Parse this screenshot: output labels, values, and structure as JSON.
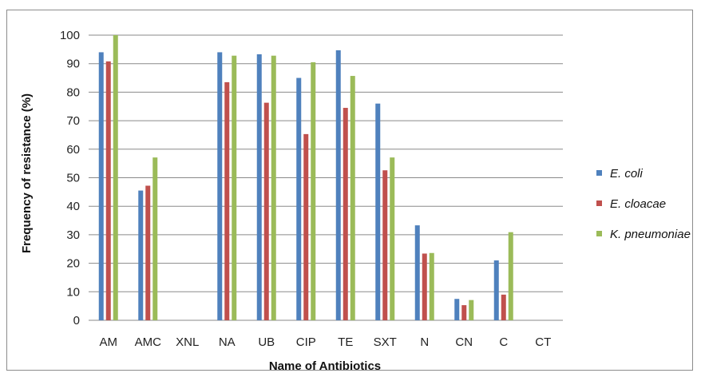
{
  "chart_data": {
    "type": "bar",
    "title": "",
    "xlabel": "Name of Antibiotics",
    "ylabel": "Frequency of resistance (%)",
    "ylim": [
      0,
      100
    ],
    "yticks": [
      0,
      10,
      20,
      30,
      40,
      50,
      60,
      70,
      80,
      90,
      100
    ],
    "grid": true,
    "legend_position": "right",
    "categories": [
      "AM",
      "AMC",
      "XNL",
      "NA",
      "UB",
      "CIP",
      "TE",
      "SXT",
      "N",
      "CN",
      "C",
      "CT"
    ],
    "series": [
      {
        "name": "E. coli",
        "color": "#4F81BD",
        "values": [
          94,
          45.5,
          0,
          94,
          93.3,
          85,
          94.7,
          76,
          33.3,
          7.5,
          21,
          0
        ]
      },
      {
        "name": "E. cloacae",
        "color": "#C0504D",
        "values": [
          90.8,
          47.2,
          0,
          83.5,
          76.3,
          65.3,
          74.5,
          52.6,
          23.4,
          5.3,
          9,
          0
        ]
      },
      {
        "name": "K. pneumoniae",
        "color": "#9BBB59",
        "values": [
          100,
          57.1,
          0,
          92.8,
          92.8,
          90.5,
          85.7,
          57.1,
          23.6,
          7.1,
          30.9,
          0
        ]
      }
    ]
  }
}
